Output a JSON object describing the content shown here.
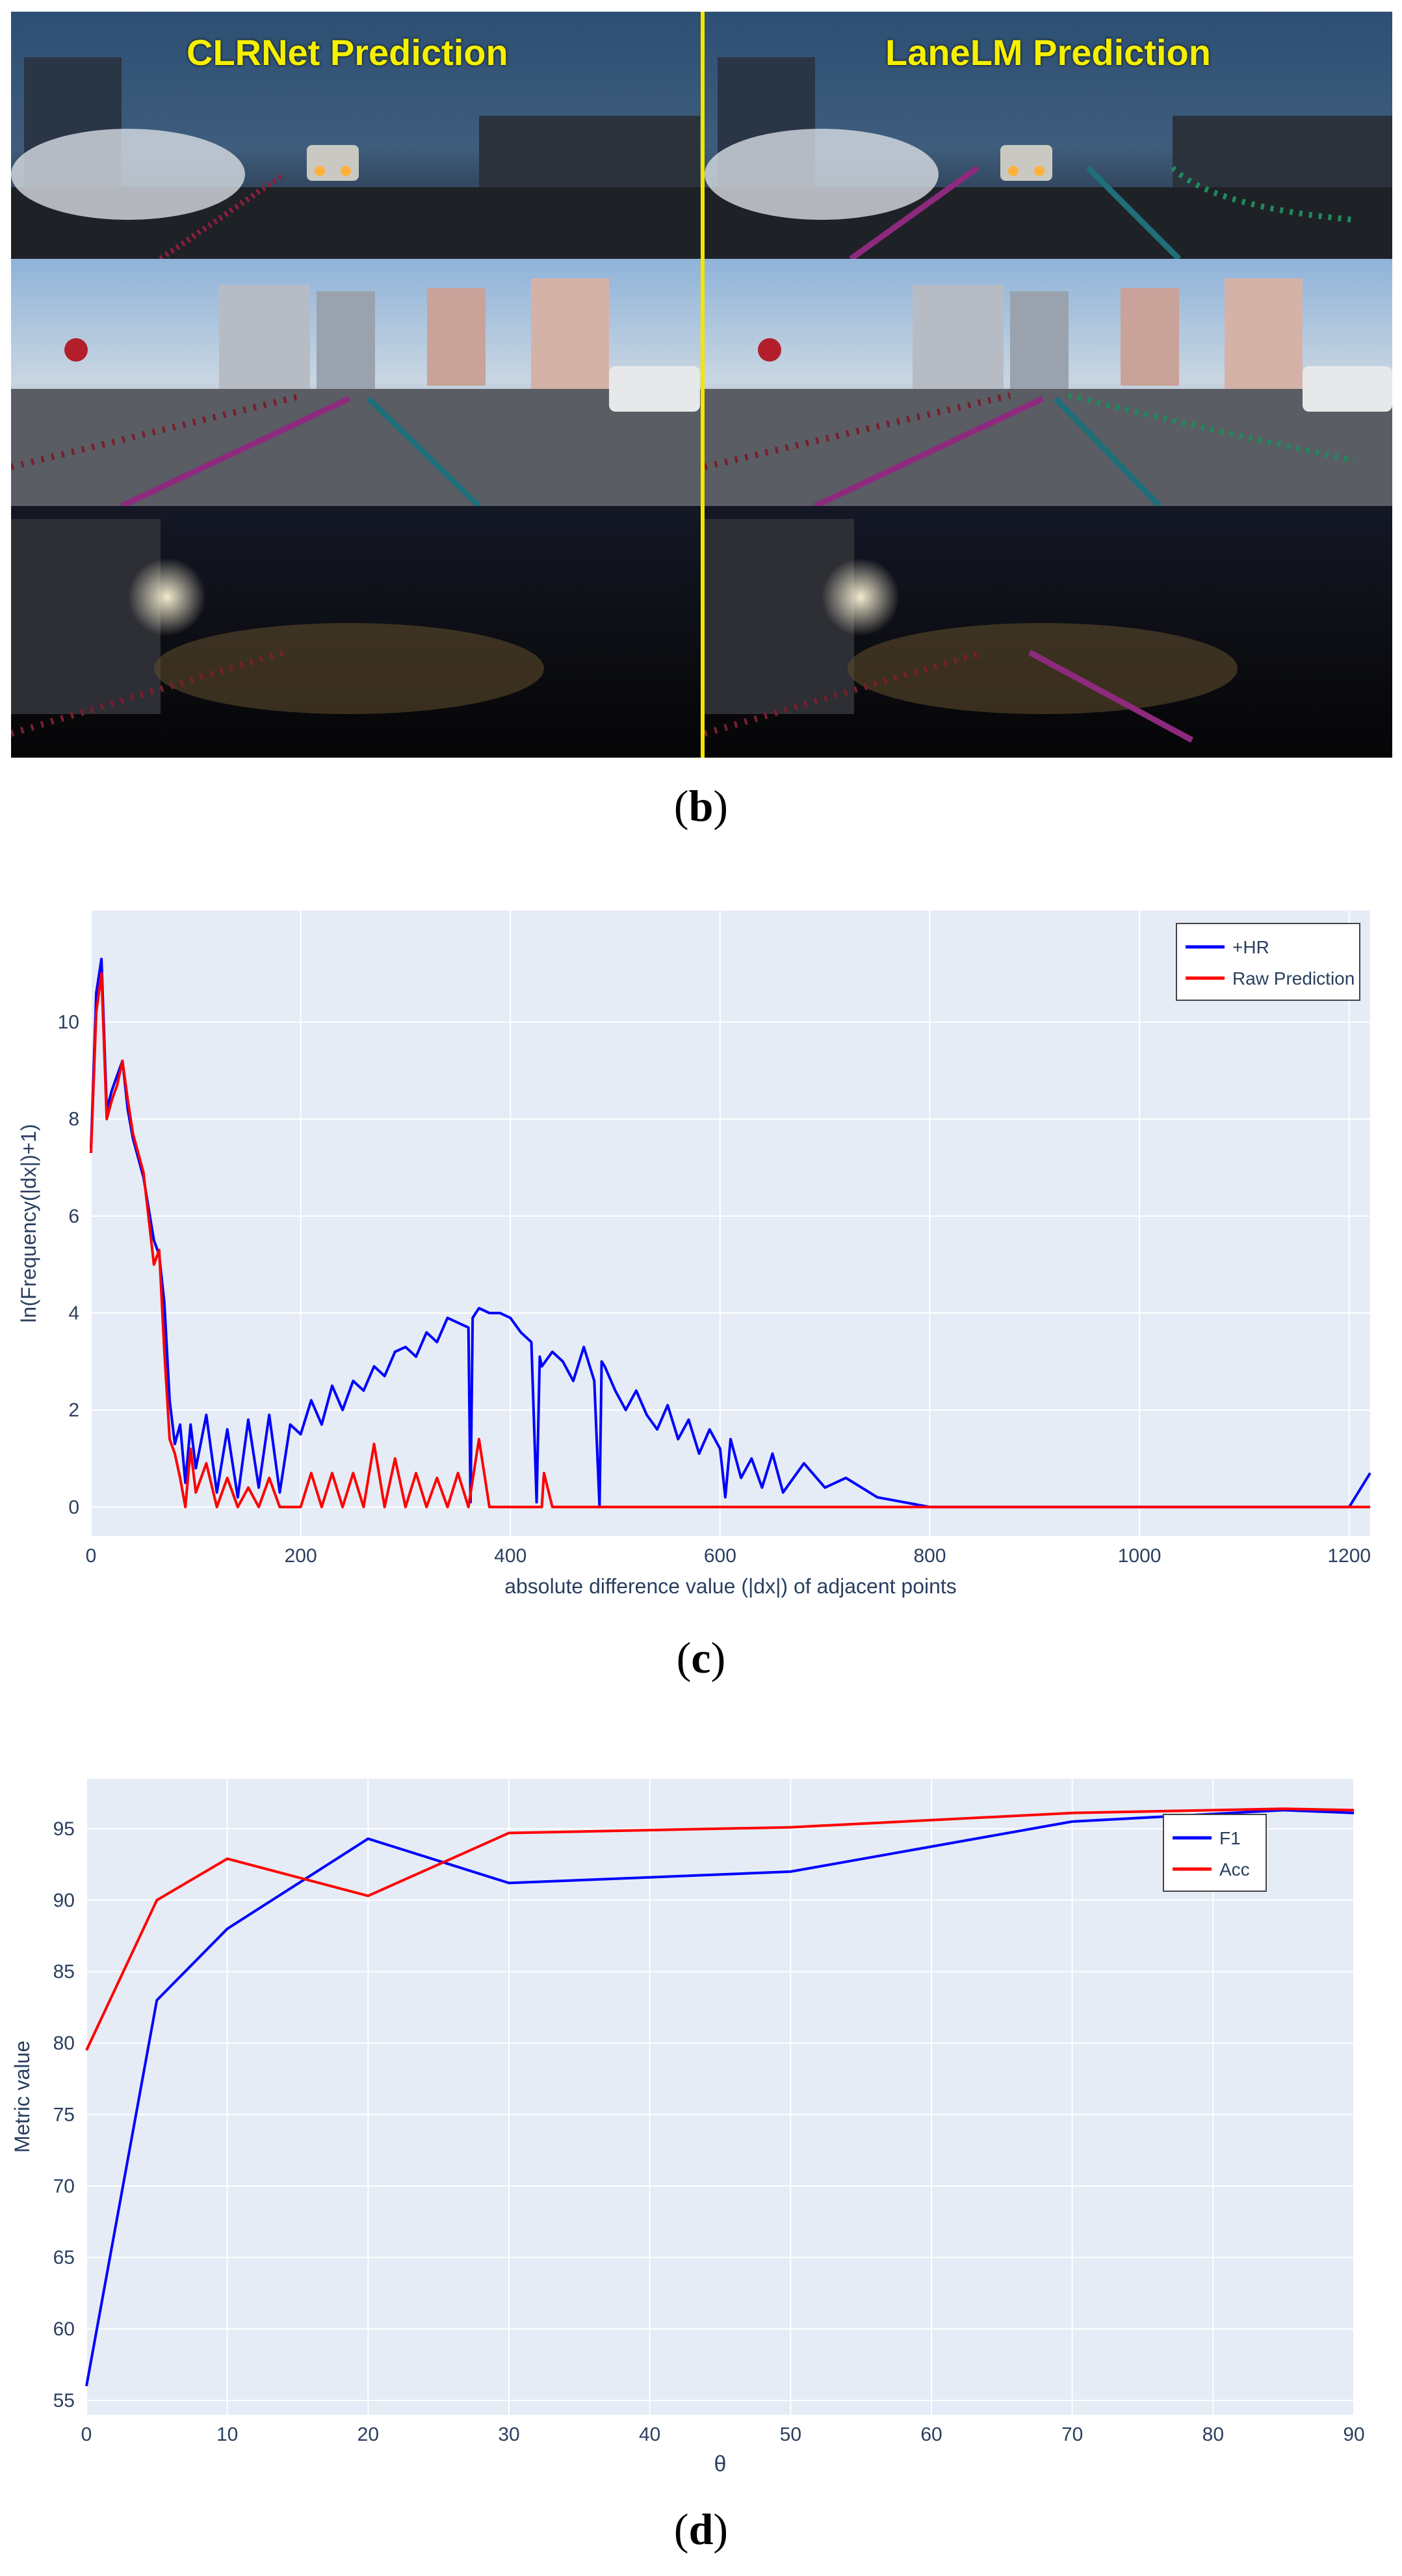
{
  "panel_b": {
    "caption_letter": "b",
    "left_title": "CLRNet Prediction",
    "right_title": "LaneLM Prediction",
    "divider_color": "#f2e600",
    "lane_colors": [
      "#8b1f3a",
      "#8e2a7e",
      "#1f6f7a",
      "#1f8a5a"
    ]
  },
  "panel_c": {
    "caption_letter": "c"
  },
  "panel_d": {
    "caption_letter": "d"
  },
  "chart_data": [
    {
      "type": "line",
      "title": "",
      "xlabel": "absolute difference value (|dx|) of adjacent points",
      "ylabel": "ln(Frequency(|dx|)+1)",
      "xlim": [
        0,
        1220
      ],
      "ylim": [
        -0.6,
        12.3
      ],
      "xticks": [
        0,
        200,
        400,
        600,
        800,
        1000,
        1200
      ],
      "yticks": [
        0,
        2,
        4,
        6,
        8,
        10
      ],
      "grid": true,
      "legend_position": "top-right",
      "series": [
        {
          "name": "+HR",
          "color": "#0000ff",
          "x": [
            0,
            5,
            10,
            15,
            20,
            25,
            30,
            35,
            40,
            50,
            60,
            65,
            70,
            75,
            80,
            85,
            90,
            95,
            100,
            110,
            120,
            130,
            140,
            150,
            160,
            170,
            180,
            190,
            200,
            210,
            220,
            230,
            240,
            250,
            260,
            270,
            280,
            290,
            300,
            310,
            320,
            330,
            340,
            350,
            360,
            362,
            364,
            370,
            380,
            390,
            400,
            410,
            420,
            425,
            428,
            430,
            440,
            450,
            460,
            470,
            480,
            485,
            487,
            490,
            500,
            510,
            520,
            530,
            540,
            550,
            560,
            570,
            580,
            590,
            600,
            605,
            610,
            620,
            630,
            640,
            650,
            660,
            680,
            700,
            720,
            750,
            800,
            850,
            900,
            950,
            1000,
            1050,
            1100,
            1150,
            1200,
            1220
          ],
          "y": [
            7.4,
            10.6,
            11.3,
            8.2,
            8.6,
            8.9,
            9.2,
            8.2,
            7.6,
            6.8,
            5.5,
            5.2,
            4.2,
            2.2,
            1.3,
            1.7,
            0.5,
            1.7,
            0.8,
            1.9,
            0.3,
            1.6,
            0.2,
            1.8,
            0.4,
            1.9,
            0.3,
            1.7,
            1.5,
            2.2,
            1.7,
            2.5,
            2.0,
            2.6,
            2.4,
            2.9,
            2.7,
            3.2,
            3.3,
            3.1,
            3.6,
            3.4,
            3.9,
            3.8,
            3.7,
            0.1,
            3.9,
            4.1,
            4.0,
            4.0,
            3.9,
            3.6,
            3.4,
            0.1,
            3.1,
            2.9,
            3.2,
            3.0,
            2.6,
            3.3,
            2.6,
            0.0,
            3.0,
            2.9,
            2.4,
            2.0,
            2.4,
            1.9,
            1.6,
            2.1,
            1.4,
            1.8,
            1.1,
            1.6,
            1.2,
            0.2,
            1.4,
            0.6,
            1.0,
            0.4,
            1.1,
            0.3,
            0.9,
            0.4,
            0.6,
            0.2,
            0.0,
            0.0,
            0.0,
            0.0,
            0.0,
            0.0,
            0.0,
            0.0,
            0.0,
            0.7
          ]
        },
        {
          "name": "Raw Prediction",
          "color": "#ff0000",
          "x": [
            0,
            5,
            10,
            15,
            20,
            25,
            30,
            35,
            40,
            50,
            60,
            65,
            70,
            75,
            80,
            85,
            90,
            95,
            100,
            110,
            120,
            130,
            140,
            150,
            160,
            170,
            180,
            190,
            200,
            210,
            220,
            230,
            240,
            250,
            260,
            270,
            280,
            290,
            300,
            310,
            320,
            330,
            340,
            350,
            360,
            370,
            380,
            390,
            400,
            420,
            430,
            432,
            440,
            500,
            600,
            800,
            1000,
            1220
          ],
          "y": [
            7.3,
            10.2,
            11.0,
            8.0,
            8.4,
            8.7,
            9.2,
            8.4,
            7.7,
            6.9,
            5.0,
            5.3,
            3.2,
            1.4,
            1.1,
            0.6,
            0.0,
            1.2,
            0.3,
            0.9,
            0.0,
            0.6,
            0.0,
            0.4,
            0.0,
            0.6,
            0.0,
            0.0,
            0.0,
            0.7,
            0.0,
            0.7,
            0.0,
            0.7,
            0.0,
            1.3,
            0.0,
            1.0,
            0.0,
            0.7,
            0.0,
            0.6,
            0.0,
            0.7,
            0.0,
            1.4,
            0.0,
            0.0,
            0.0,
            0.0,
            0.0,
            0.7,
            0.0,
            0.0,
            0.0,
            0.0,
            0.0,
            0.0
          ]
        }
      ]
    },
    {
      "type": "line",
      "title": "",
      "xlabel": "θ",
      "ylabel": "Metric value",
      "xlim": [
        0,
        90
      ],
      "ylim": [
        54,
        98.5
      ],
      "xticks": [
        0,
        10,
        20,
        30,
        40,
        50,
        60,
        70,
        80,
        90
      ],
      "yticks": [
        55,
        60,
        65,
        70,
        75,
        80,
        85,
        90,
        95
      ],
      "grid": true,
      "legend_position": "top-right",
      "series": [
        {
          "name": "F1",
          "color": "#0000ff",
          "x": [
            0,
            5,
            10,
            20,
            30,
            50,
            70,
            85,
            90
          ],
          "y": [
            56.0,
            83.0,
            88.0,
            94.3,
            91.2,
            92.0,
            95.5,
            96.3,
            96.1
          ]
        },
        {
          "name": "Acc",
          "color": "#ff0000",
          "x": [
            0,
            5,
            10,
            20,
            30,
            50,
            70,
            85,
            90
          ],
          "y": [
            79.5,
            90.0,
            92.9,
            90.3,
            94.7,
            95.1,
            96.1,
            96.4,
            96.3
          ]
        }
      ]
    }
  ]
}
